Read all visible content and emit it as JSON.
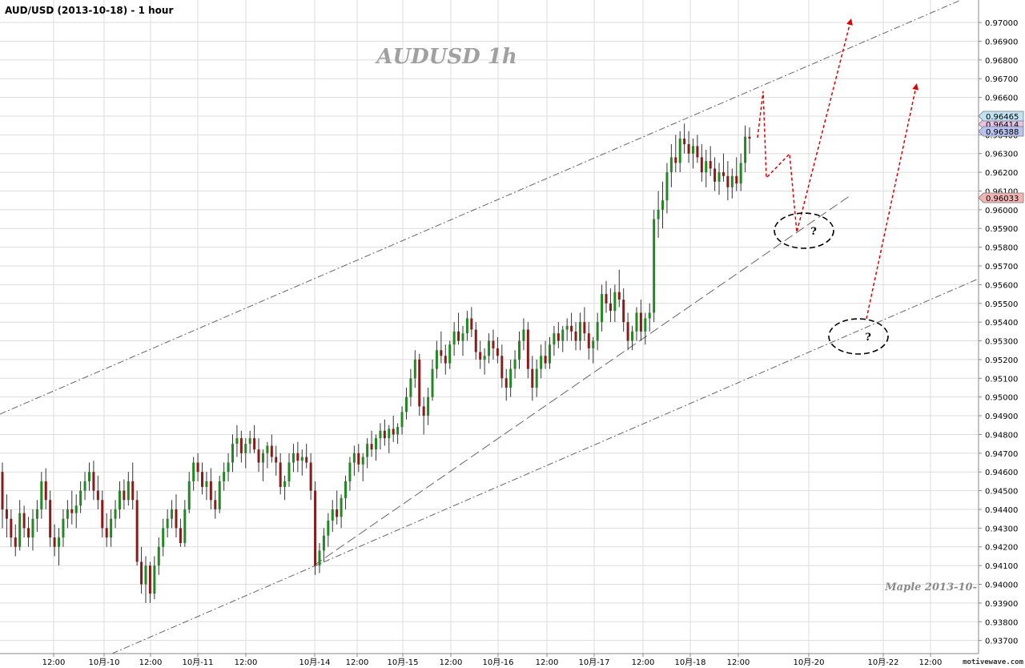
{
  "header": {
    "title": "AUD/USD (2013-10-18) - 1 hour"
  },
  "watermark": {
    "label": "AUDUSD  1h",
    "signature": "Maple  2013-10-",
    "brand": "motivewave.com"
  },
  "colors": {
    "up": "#1f8a1f",
    "down": "#8b1a1a",
    "grid": "#dddddd",
    "trend": "#666666",
    "projection": "#e00000",
    "price_high_tag": "#bfe3f0",
    "price_mid_tag": "#e8c3e8",
    "price_cur_tag": "#b9c3f0",
    "price_low_tag": "#f3b4b4"
  },
  "chart_data": {
    "type": "candlestick",
    "title": "AUD/USD (2013-10-18) - 1 hour",
    "ylim": [
      0.9363,
      0.9712
    ],
    "y_ticks": [
      "0.93700",
      "0.93800",
      "0.93900",
      "0.94000",
      "0.94100",
      "0.94200",
      "0.94300",
      "0.94400",
      "0.94500",
      "0.94600",
      "0.94700",
      "0.94800",
      "0.94900",
      "0.95000",
      "0.95100",
      "0.95200",
      "0.95300",
      "0.95400",
      "0.95500",
      "0.95600",
      "0.95700",
      "0.95800",
      "0.95900",
      "0.96000",
      "0.96100",
      "0.96200",
      "0.96300",
      "0.96400",
      "0.96500",
      "0.96600",
      "0.96700",
      "0.96800",
      "0.96900",
      "0.97000"
    ],
    "x_ticks": [
      "12:00",
      "10月-10",
      "12:00",
      "10月-11",
      "12:00",
      "10月-14",
      "12:00",
      "10月-15",
      "12:00",
      "10月-16",
      "12:00",
      "10月-17",
      "12:00",
      "10月-18",
      "12:00",
      "10月-20",
      "10月-22",
      "12:00"
    ],
    "price_tags": [
      {
        "label": "0.96465",
        "value": 0.96465,
        "role": "high"
      },
      {
        "label": "0.96414",
        "value": 0.96414,
        "role": "mid"
      },
      {
        "label": "0.96388",
        "value": 0.96388,
        "role": "current"
      },
      {
        "label": "0.96033",
        "value": 0.96033,
        "role": "low"
      }
    ],
    "candles": [
      [
        0.946,
        0.9465,
        0.943,
        0.944
      ],
      [
        0.944,
        0.9448,
        0.9425,
        0.9435
      ],
      [
        0.9435,
        0.944,
        0.942,
        0.9425
      ],
      [
        0.9425,
        0.9432,
        0.9415,
        0.942
      ],
      [
        0.942,
        0.9445,
        0.9418,
        0.9438
      ],
      [
        0.9438,
        0.9442,
        0.9425,
        0.943
      ],
      [
        0.943,
        0.9436,
        0.942,
        0.9425
      ],
      [
        0.9425,
        0.944,
        0.9418,
        0.9435
      ],
      [
        0.9435,
        0.9445,
        0.9428,
        0.944
      ],
      [
        0.944,
        0.946,
        0.9435,
        0.9455
      ],
      [
        0.9455,
        0.9462,
        0.944,
        0.9445
      ],
      [
        0.9445,
        0.945,
        0.942,
        0.9425
      ],
      [
        0.9425,
        0.9432,
        0.9415,
        0.942
      ],
      [
        0.942,
        0.943,
        0.941,
        0.9425
      ],
      [
        0.9425,
        0.944,
        0.942,
        0.9435
      ],
      [
        0.9435,
        0.9445,
        0.943,
        0.944
      ],
      [
        0.944,
        0.945,
        0.9432,
        0.9438
      ],
      [
        0.9438,
        0.9448,
        0.943,
        0.9442
      ],
      [
        0.9442,
        0.9455,
        0.9438,
        0.945
      ],
      [
        0.945,
        0.946,
        0.9445,
        0.9455
      ],
      [
        0.9455,
        0.9465,
        0.945,
        0.946
      ],
      [
        0.946,
        0.9466,
        0.9445,
        0.945
      ],
      [
        0.945,
        0.9458,
        0.944,
        0.9445
      ],
      [
        0.9445,
        0.945,
        0.9425,
        0.943
      ],
      [
        0.943,
        0.9438,
        0.942,
        0.9425
      ],
      [
        0.9425,
        0.944,
        0.942,
        0.9435
      ],
      [
        0.9435,
        0.9445,
        0.943,
        0.944
      ],
      [
        0.944,
        0.9455,
        0.9435,
        0.945
      ],
      [
        0.945,
        0.9456,
        0.944,
        0.9445
      ],
      [
        0.9445,
        0.946,
        0.9442,
        0.9455
      ],
      [
        0.9455,
        0.9465,
        0.944,
        0.9445
      ],
      [
        0.9445,
        0.945,
        0.941,
        0.9412
      ],
      [
        0.9412,
        0.942,
        0.9395,
        0.94
      ],
      [
        0.94,
        0.9415,
        0.939,
        0.941
      ],
      [
        0.941,
        0.9412,
        0.939,
        0.9395
      ],
      [
        0.9395,
        0.9415,
        0.9392,
        0.941
      ],
      [
        0.941,
        0.9425,
        0.9405,
        0.942
      ],
      [
        0.942,
        0.9435,
        0.9415,
        0.943
      ],
      [
        0.943,
        0.944,
        0.9425,
        0.9435
      ],
      [
        0.9435,
        0.9445,
        0.943,
        0.944
      ],
      [
        0.944,
        0.9448,
        0.9425,
        0.943
      ],
      [
        0.943,
        0.9435,
        0.942,
        0.9422
      ],
      [
        0.9422,
        0.9445,
        0.942,
        0.944
      ],
      [
        0.944,
        0.946,
        0.9438,
        0.9455
      ],
      [
        0.9455,
        0.9468,
        0.945,
        0.9465
      ],
      [
        0.9465,
        0.947,
        0.9455,
        0.946
      ],
      [
        0.946,
        0.9465,
        0.9448,
        0.9452
      ],
      [
        0.9452,
        0.946,
        0.9445,
        0.9455
      ],
      [
        0.9455,
        0.9462,
        0.944,
        0.9445
      ],
      [
        0.9445,
        0.945,
        0.9435,
        0.944
      ],
      [
        0.944,
        0.9458,
        0.9438,
        0.9455
      ],
      [
        0.9455,
        0.9465,
        0.945,
        0.946
      ],
      [
        0.946,
        0.947,
        0.9455,
        0.9465
      ],
      [
        0.9465,
        0.948,
        0.946,
        0.9475
      ],
      [
        0.9475,
        0.9485,
        0.9468,
        0.9478
      ],
      [
        0.9478,
        0.9482,
        0.9465,
        0.947
      ],
      [
        0.947,
        0.9478,
        0.9462,
        0.9475
      ],
      [
        0.9475,
        0.9482,
        0.947,
        0.9478
      ],
      [
        0.9478,
        0.9485,
        0.947,
        0.9472
      ],
      [
        0.9472,
        0.9478,
        0.946,
        0.9465
      ],
      [
        0.9465,
        0.9472,
        0.9455,
        0.947
      ],
      [
        0.947,
        0.9476,
        0.9462,
        0.9474
      ],
      [
        0.9474,
        0.948,
        0.9465,
        0.9468
      ],
      [
        0.9468,
        0.9474,
        0.9458,
        0.9465
      ],
      [
        0.9465,
        0.947,
        0.9448,
        0.9452
      ],
      [
        0.9452,
        0.9458,
        0.9445,
        0.9455
      ],
      [
        0.9455,
        0.947,
        0.9452,
        0.9465
      ],
      [
        0.9465,
        0.9475,
        0.946,
        0.947
      ],
      [
        0.947,
        0.9476,
        0.946,
        0.9466
      ],
      [
        0.9466,
        0.9472,
        0.9458,
        0.9468
      ],
      [
        0.9468,
        0.9475,
        0.9462,
        0.9465
      ],
      [
        0.9465,
        0.947,
        0.9445,
        0.945
      ],
      [
        0.945,
        0.9455,
        0.9405,
        0.941
      ],
      [
        0.941,
        0.9422,
        0.9406,
        0.9418
      ],
      [
        0.9418,
        0.943,
        0.9412,
        0.9426
      ],
      [
        0.9426,
        0.9438,
        0.942,
        0.9434
      ],
      [
        0.9434,
        0.9445,
        0.9428,
        0.944
      ],
      [
        0.944,
        0.945,
        0.9432,
        0.9436
      ],
      [
        0.9436,
        0.9448,
        0.943,
        0.9446
      ],
      [
        0.9446,
        0.9458,
        0.944,
        0.9455
      ],
      [
        0.9455,
        0.9468,
        0.945,
        0.9465
      ],
      [
        0.9465,
        0.9474,
        0.9458,
        0.947
      ],
      [
        0.947,
        0.9475,
        0.946,
        0.9464
      ],
      [
        0.9464,
        0.947,
        0.9455,
        0.9468
      ],
      [
        0.9468,
        0.9478,
        0.9462,
        0.9475
      ],
      [
        0.9475,
        0.9482,
        0.9468,
        0.9472
      ],
      [
        0.9472,
        0.948,
        0.9466,
        0.9478
      ],
      [
        0.9478,
        0.9486,
        0.9472,
        0.9482
      ],
      [
        0.9482,
        0.9488,
        0.9474,
        0.9478
      ],
      [
        0.9478,
        0.9485,
        0.947,
        0.9483
      ],
      [
        0.9483,
        0.949,
        0.9476,
        0.948
      ],
      [
        0.948,
        0.9486,
        0.9475,
        0.9484
      ],
      [
        0.9484,
        0.9495,
        0.948,
        0.9492
      ],
      [
        0.9492,
        0.9505,
        0.9488,
        0.95
      ],
      [
        0.95,
        0.9515,
        0.9495,
        0.951
      ],
      [
        0.951,
        0.9525,
        0.9505,
        0.952
      ],
      [
        0.952,
        0.9523,
        0.949,
        0.9495
      ],
      [
        0.9495,
        0.95,
        0.948,
        0.949
      ],
      [
        0.949,
        0.9505,
        0.9485,
        0.95
      ],
      [
        0.95,
        0.952,
        0.9498,
        0.9515
      ],
      [
        0.9515,
        0.953,
        0.951,
        0.9525
      ],
      [
        0.9525,
        0.9535,
        0.9518,
        0.9522
      ],
      [
        0.9522,
        0.9528,
        0.9512,
        0.9518
      ],
      [
        0.9518,
        0.953,
        0.9515,
        0.9528
      ],
      [
        0.9528,
        0.954,
        0.9522,
        0.9535
      ],
      [
        0.9535,
        0.9545,
        0.9528,
        0.953
      ],
      [
        0.953,
        0.9538,
        0.9522,
        0.9534
      ],
      [
        0.9534,
        0.9546,
        0.953,
        0.9542
      ],
      [
        0.9542,
        0.9548,
        0.9532,
        0.9536
      ],
      [
        0.9536,
        0.954,
        0.952,
        0.9524
      ],
      [
        0.9524,
        0.953,
        0.9515,
        0.952
      ],
      [
        0.952,
        0.9526,
        0.9512,
        0.9522
      ],
      [
        0.9522,
        0.9534,
        0.9518,
        0.953
      ],
      [
        0.953,
        0.9536,
        0.952,
        0.9526
      ],
      [
        0.9526,
        0.9532,
        0.9518,
        0.9522
      ],
      [
        0.9522,
        0.9528,
        0.9505,
        0.951
      ],
      [
        0.951,
        0.9515,
        0.9498,
        0.9505
      ],
      [
        0.9505,
        0.952,
        0.95,
        0.9515
      ],
      [
        0.9515,
        0.9525,
        0.951,
        0.952
      ],
      [
        0.952,
        0.9535,
        0.9515,
        0.953
      ],
      [
        0.953,
        0.9542,
        0.9525,
        0.9536
      ],
      [
        0.9536,
        0.954,
        0.951,
        0.9515
      ],
      [
        0.9515,
        0.9522,
        0.9498,
        0.9505
      ],
      [
        0.9505,
        0.952,
        0.95,
        0.9515
      ],
      [
        0.9515,
        0.9528,
        0.951,
        0.9522
      ],
      [
        0.9522,
        0.953,
        0.9515,
        0.9518
      ],
      [
        0.9518,
        0.9532,
        0.9515,
        0.9528
      ],
      [
        0.9528,
        0.9538,
        0.9522,
        0.9534
      ],
      [
        0.9534,
        0.954,
        0.9526,
        0.953
      ],
      [
        0.953,
        0.9538,
        0.9524,
        0.9536
      ],
      [
        0.9536,
        0.9542,
        0.953,
        0.9538
      ],
      [
        0.9538,
        0.9545,
        0.953,
        0.9535
      ],
      [
        0.9535,
        0.954,
        0.9525,
        0.953
      ],
      [
        0.953,
        0.9545,
        0.9525,
        0.954
      ],
      [
        0.954,
        0.9548,
        0.953,
        0.9534
      ],
      [
        0.9534,
        0.954,
        0.952,
        0.9526
      ],
      [
        0.9526,
        0.9532,
        0.9518,
        0.953
      ],
      [
        0.953,
        0.9545,
        0.9525,
        0.954
      ],
      [
        0.954,
        0.956,
        0.9535,
        0.9555
      ],
      [
        0.9555,
        0.9562,
        0.9545,
        0.955
      ],
      [
        0.955,
        0.9558,
        0.954,
        0.9546
      ],
      [
        0.9546,
        0.956,
        0.954,
        0.9556
      ],
      [
        0.9556,
        0.9568,
        0.9548,
        0.9552
      ],
      [
        0.9552,
        0.9558,
        0.9535,
        0.954
      ],
      [
        0.954,
        0.9545,
        0.9525,
        0.953
      ],
      [
        0.953,
        0.9538,
        0.9525,
        0.9535
      ],
      [
        0.9535,
        0.9548,
        0.953,
        0.9545
      ],
      [
        0.9545,
        0.9552,
        0.953,
        0.9535
      ],
      [
        0.9535,
        0.9545,
        0.9528,
        0.9542
      ],
      [
        0.9542,
        0.955,
        0.9535,
        0.9545
      ],
      [
        0.9545,
        0.96,
        0.954,
        0.9595
      ],
      [
        0.9595,
        0.961,
        0.9585,
        0.96
      ],
      [
        0.96,
        0.9615,
        0.959,
        0.9605
      ],
      [
        0.9605,
        0.9625,
        0.9598,
        0.962
      ],
      [
        0.962,
        0.9635,
        0.9612,
        0.9628
      ],
      [
        0.9628,
        0.964,
        0.962,
        0.9625
      ],
      [
        0.9625,
        0.9642,
        0.962,
        0.9638
      ],
      [
        0.9638,
        0.9646,
        0.963,
        0.9635
      ],
      [
        0.9635,
        0.9642,
        0.9625,
        0.963
      ],
      [
        0.963,
        0.9638,
        0.9622,
        0.9634
      ],
      [
        0.9634,
        0.964,
        0.9625,
        0.9628
      ],
      [
        0.9628,
        0.9635,
        0.9615,
        0.962
      ],
      [
        0.962,
        0.9632,
        0.9612,
        0.9626
      ],
      [
        0.9626,
        0.9634,
        0.9618,
        0.9622
      ],
      [
        0.9622,
        0.9628,
        0.961,
        0.9615
      ],
      [
        0.9615,
        0.9625,
        0.9608,
        0.962
      ],
      [
        0.962,
        0.963,
        0.9615,
        0.9618
      ],
      [
        0.9618,
        0.9626,
        0.9605,
        0.9612
      ],
      [
        0.9612,
        0.9622,
        0.9606,
        0.9618
      ],
      [
        0.9618,
        0.9628,
        0.961,
        0.9614
      ],
      [
        0.9614,
        0.963,
        0.961,
        0.9625
      ],
      [
        0.9625,
        0.9645,
        0.962,
        0.9639
      ],
      [
        0.9639,
        0.9644,
        0.963,
        0.9638
      ]
    ]
  }
}
